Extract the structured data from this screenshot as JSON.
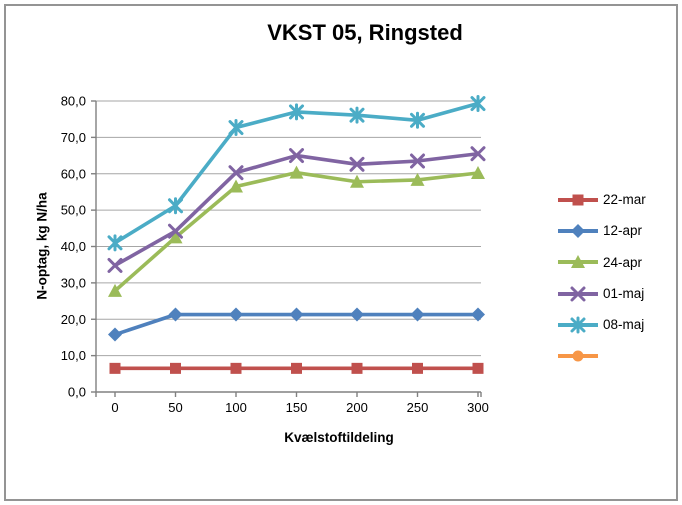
{
  "chart_data": {
    "type": "line",
    "title": "VKST 05, Ringsted",
    "xlabel": "Kvælstoftildeling",
    "ylabel": "N-optag, kg N/ha",
    "categories": [
      0,
      50,
      100,
      150,
      200,
      250,
      300
    ],
    "x_tick_labels": [
      "0",
      "50",
      "100",
      "150",
      "200",
      "250",
      "300"
    ],
    "y_ticks": [
      0,
      10,
      20,
      30,
      40,
      50,
      60,
      70,
      80
    ],
    "y_tick_labels": [
      "0,0",
      "10,0",
      "20,0",
      "30,0",
      "40,0",
      "50,0",
      "60,0",
      "70,0",
      "80,0"
    ],
    "ylim": [
      0,
      80
    ],
    "grid": "horizontal",
    "legend_position": "right",
    "series": [
      {
        "name": "22-mar",
        "color": "#C0504D",
        "marker": "square",
        "values": [
          6.5,
          6.5,
          6.5,
          6.5,
          6.5,
          6.5,
          6.5
        ]
      },
      {
        "name": "12-apr",
        "color": "#4F81BD",
        "marker": "diamond",
        "values": [
          15.8,
          21.3,
          21.3,
          21.3,
          21.3,
          21.3,
          21.3
        ]
      },
      {
        "name": "24-apr",
        "color": "#9BBB59",
        "marker": "triangle",
        "values": [
          27.8,
          42.5,
          56.5,
          60.3,
          57.8,
          58.3,
          60.2
        ]
      },
      {
        "name": "01-maj",
        "color": "#8064A2",
        "marker": "x",
        "values": [
          34.8,
          44.2,
          60.3,
          65.0,
          62.6,
          63.5,
          65.5
        ]
      },
      {
        "name": "08-maj",
        "color": "#4BACC6",
        "marker": "asterisk",
        "values": [
          41.0,
          51.2,
          72.7,
          77.0,
          76.1,
          74.7,
          79.3
        ]
      },
      {
        "name": "",
        "color": "#F79646",
        "marker": "circle",
        "values": []
      }
    ],
    "colors": {
      "gridline": "#A6A6A6",
      "axis": "#808080",
      "text": "#000000",
      "frame_border": "#949494",
      "background": "#FFFFFF"
    }
  }
}
